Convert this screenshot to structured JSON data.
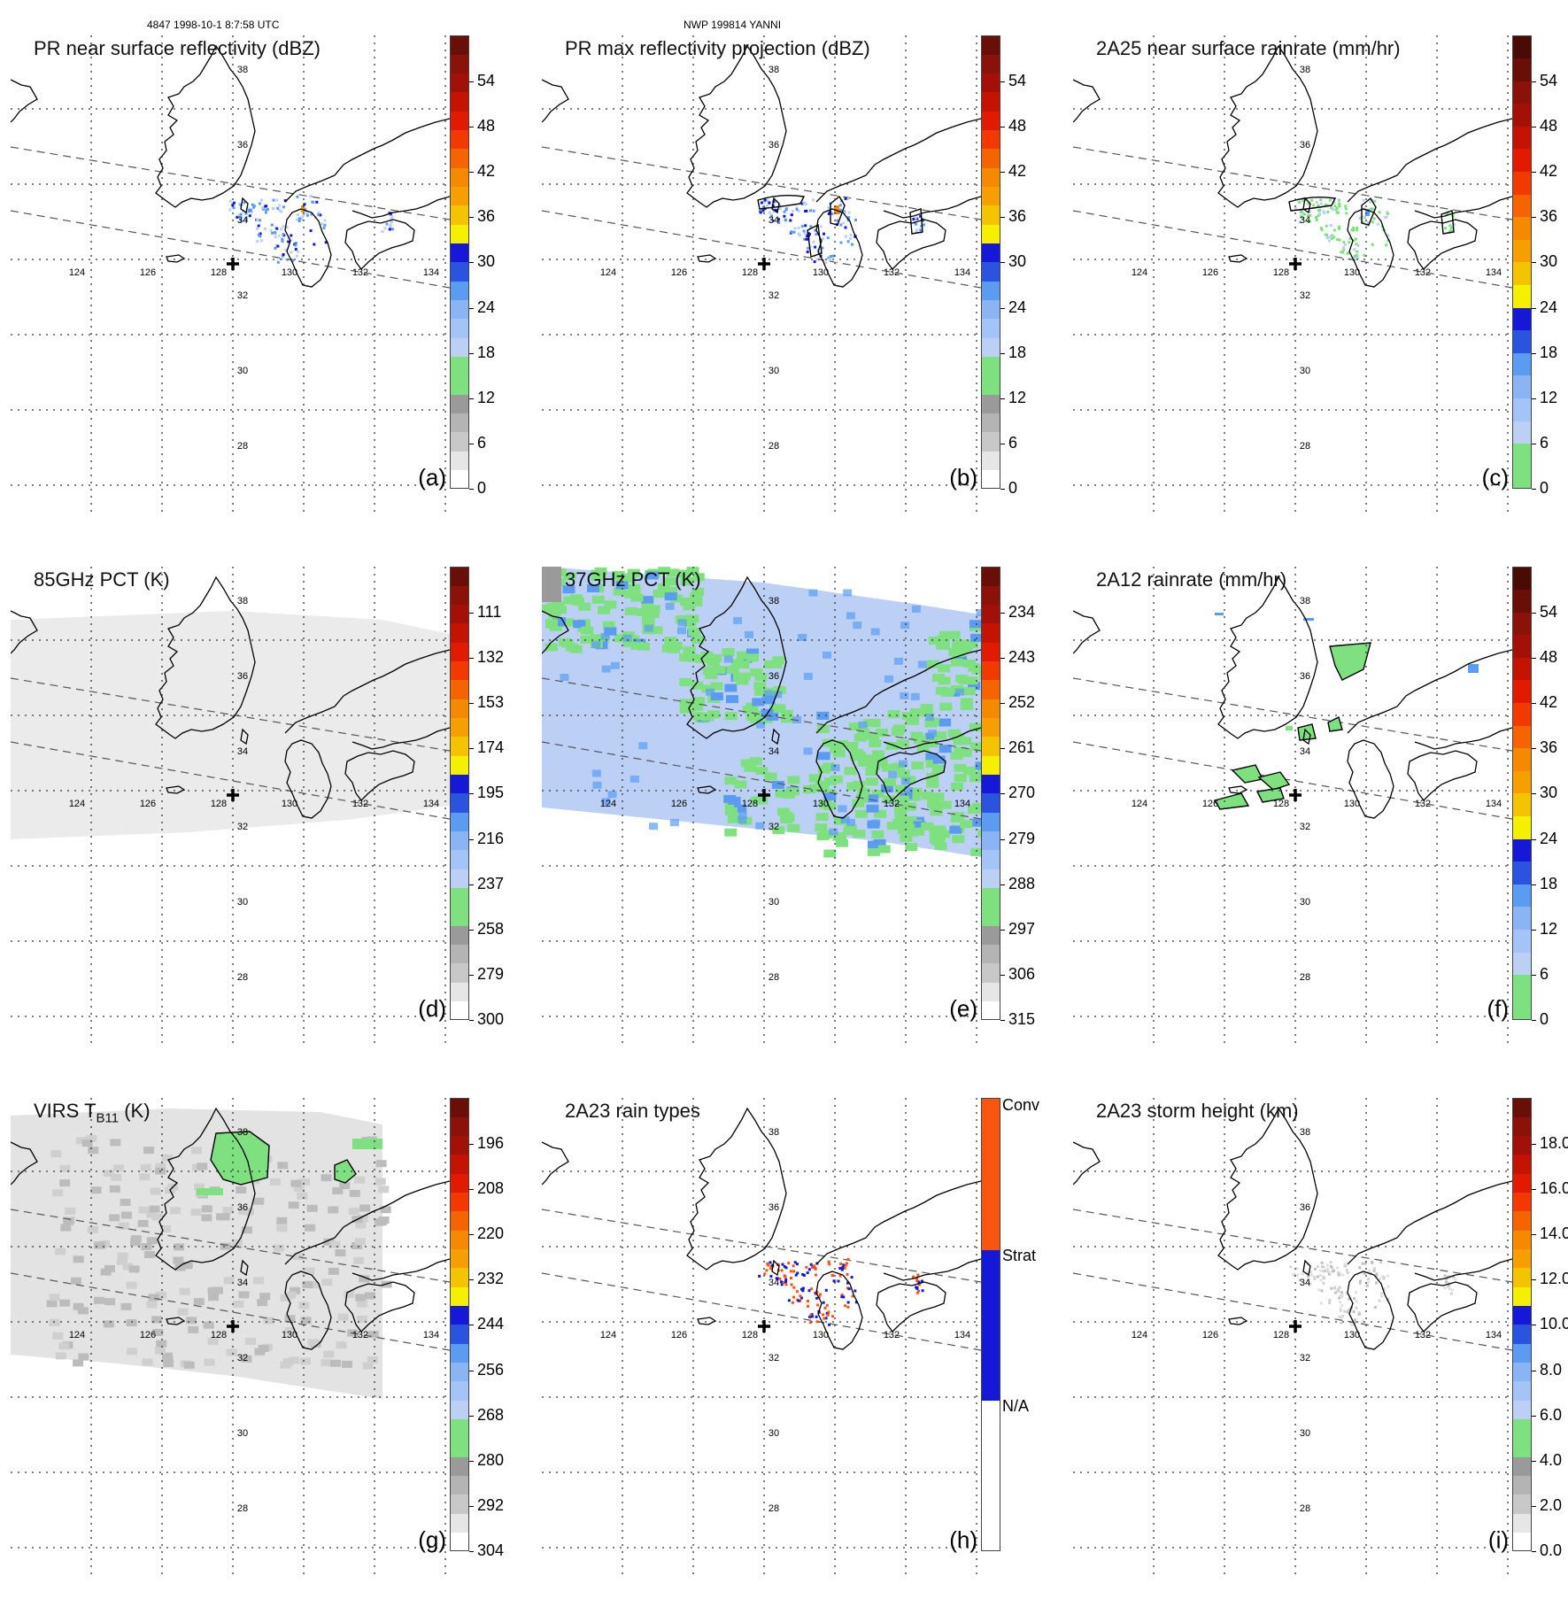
{
  "header": {
    "orbit_info": "4847 1998-10-1 8:7:58 UTC",
    "storm_info": "NWP 199814 YANNI"
  },
  "map": {
    "lon_labels": [
      "124",
      "126",
      "128",
      "130",
      "132",
      "134"
    ],
    "lat_labels": [
      "38",
      "36",
      "34",
      "32",
      "30",
      "28"
    ],
    "center_marker": "cross-icon"
  },
  "colors": {
    "green": "#7ee07e",
    "light_blue": "#bccff5",
    "blue": "#5b9cf2",
    "dark_blue": "#1518d6",
    "yellow": "#f4f000",
    "orange": "#f58a00",
    "red": "#e21b00",
    "dark_red": "#8a1208",
    "conv": "#fa5510",
    "strat": "#1518d6"
  },
  "panels": [
    {
      "id": "a",
      "label": "(a)",
      "title": "PR near surface reflectivity (dBZ)",
      "colorbar": {
        "type": "reflectivity",
        "labels": [
          "0",
          "6",
          "12",
          "18",
          "24",
          "30",
          "36",
          "42",
          "48",
          "54"
        ]
      },
      "field": "pr_surface"
    },
    {
      "id": "b",
      "label": "(b)",
      "title": "PR max reflectivity projection (dBZ)",
      "colorbar": {
        "type": "reflectivity",
        "labels": [
          "0",
          "6",
          "12",
          "18",
          "24",
          "30",
          "36",
          "42",
          "48",
          "54"
        ]
      },
      "field": "pr_max"
    },
    {
      "id": "c",
      "label": "(c)",
      "title": "2A25 near surface rainrate (mm/hr)",
      "colorbar": {
        "type": "rainrate",
        "labels": [
          "0",
          "6",
          "12",
          "18",
          "24",
          "30",
          "36",
          "42",
          "48",
          "54"
        ]
      },
      "field": "rain_2a25"
    },
    {
      "id": "d",
      "label": "(d)",
      "title": "85GHz PCT (K)",
      "colorbar": {
        "type": "pct",
        "labels": [
          "300",
          "279",
          "258",
          "237",
          "216",
          "195",
          "174",
          "153",
          "132",
          "111"
        ]
      },
      "field": "pct85"
    },
    {
      "id": "e",
      "label": "(e)",
      "title": "37GHz PCT (K)",
      "colorbar": {
        "type": "pct",
        "labels": [
          "315",
          "306",
          "297",
          "288",
          "279",
          "270",
          "261",
          "252",
          "243",
          "234"
        ]
      },
      "field": "pct37"
    },
    {
      "id": "f",
      "label": "(f)",
      "title": "2A12 rainrate (mm/hr)",
      "colorbar": {
        "type": "rainrate",
        "labels": [
          "0",
          "6",
          "12",
          "18",
          "24",
          "30",
          "36",
          "42",
          "48",
          "54"
        ]
      },
      "field": "rain_2a12"
    },
    {
      "id": "g",
      "label": "(g)",
      "title": "VIRS T",
      "title_sub": "B11",
      "title_suffix": " (K)",
      "colorbar": {
        "type": "pct",
        "labels": [
          "304",
          "292",
          "280",
          "268",
          "256",
          "244",
          "232",
          "220",
          "208",
          "196"
        ]
      },
      "field": "virs"
    },
    {
      "id": "h",
      "label": "(h)",
      "title": "2A23 rain types",
      "colorbar": {
        "type": "raintype",
        "labels": [
          "N/A",
          "Strat",
          "Conv"
        ]
      },
      "field": "raintype"
    },
    {
      "id": "i",
      "label": "(i)",
      "title": "2A23 storm height (km)",
      "colorbar": {
        "type": "height",
        "labels": [
          "0.0",
          "2.0",
          "4.0",
          "6.0",
          "8.0",
          "10.0",
          "12.0",
          "14.0",
          "16.0",
          "18.0"
        ]
      },
      "field": "height"
    }
  ]
}
